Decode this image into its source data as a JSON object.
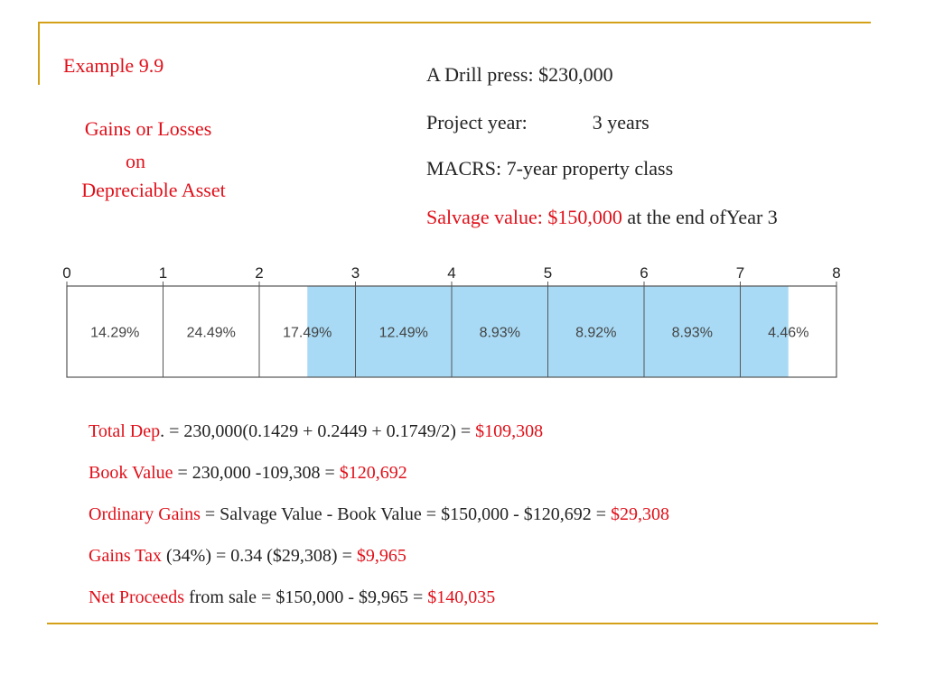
{
  "example_title": "Example 9.9",
  "topic": {
    "line1": "Gains or Losses",
    "line2": "on",
    "line3": "Depreciable Asset"
  },
  "info": {
    "drill_label": "A Drill press:",
    "drill_value": "$230,000",
    "project_label": "Project year:",
    "project_value": "3 years",
    "macrs_label": "MACRS:",
    "macrs_value": "7-year property class",
    "salvage_label": "Salvage value:",
    "salvage_value": "$150,000",
    "salvage_suffix": "at the end ofYear",
    "salvage_year": "3"
  },
  "timeline": {
    "years": [
      "0",
      "1",
      "2",
      "3",
      "4",
      "5",
      "6",
      "7",
      "8"
    ],
    "rates": [
      "14.29%",
      "24.49%",
      "17.49%",
      "12.49%",
      "8.93%",
      "8.92%",
      "8.93%",
      "4.46%"
    ],
    "highlight_start": 2.5,
    "highlight_end": 7.5,
    "highlight_color": "#a8daf5"
  },
  "calculations": {
    "total_dep_label": "Total Dep",
    "total_dep_expr": ". = 230,000(0.1429 + 0.2449 + 0.1749/2) =",
    "total_dep_result": "$109,308",
    "book_value_label": "Book Value",
    "book_value_expr": "= 230,000 -109,308 =",
    "book_value_result": "$120,692",
    "ordinary_gains_label": "Ordinary Gains",
    "ordinary_gains_expr": "= Salvage Value - Book Value = $150,000 - $120,692 =",
    "ordinary_gains_result": "$29,308",
    "gains_tax_label": "Gains Tax",
    "gains_tax_expr": "(34%) = 0.34 ($29,308) =",
    "gains_tax_result": "$9,965",
    "net_proceeds_label": "Net Proceeds",
    "net_proceeds_expr": "from sale = $150,000 - $9,965 =",
    "net_proceeds_result": "$140,035"
  },
  "colors": {
    "accent_gold": "#d4a017",
    "emphasis_red": "#e0101a"
  }
}
